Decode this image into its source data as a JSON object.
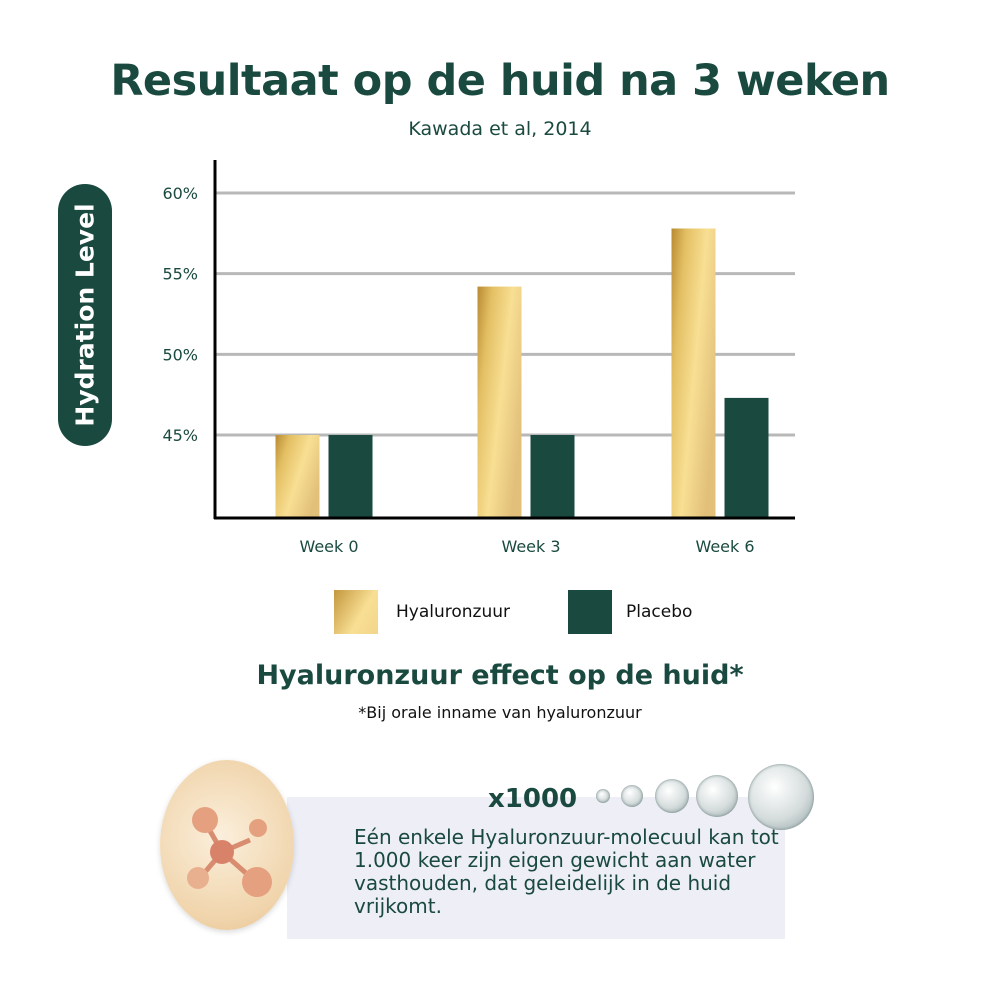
{
  "title": "Resultaat op de huid na 3 weken",
  "subtitle": "Kawada et al, 2014",
  "chart_data": {
    "type": "bar",
    "ylabel": "Hydration Level",
    "categories": [
      "Week 0",
      "Week 3",
      "Week 6"
    ],
    "yticks": [
      "45%",
      "50%",
      "55%",
      "60%"
    ],
    "ytick_values": [
      45,
      50,
      55,
      60
    ],
    "ylim": [
      40,
      62
    ],
    "grid": true,
    "legend_position": "bottom",
    "series": [
      {
        "name": "Hyaluronzuur",
        "values": [
          45,
          54.2,
          57.8
        ],
        "color": "#e3bf63"
      },
      {
        "name": "Placebo",
        "values": [
          45,
          45,
          47.3
        ],
        "color": "#1a4a3f"
      }
    ]
  },
  "section": {
    "heading": "Hyaluronzuur effect op de huid*",
    "note": "*Bij orale inname van hyaluronzuur",
    "multiplier": "x1000",
    "body": "Eén enkele Hyaluronzuur-molecuul kan tot 1.000 keer zijn eigen gewicht aan water vasthouden, dat geleidelijk in de huid vrijkomt."
  },
  "colors": {
    "primary": "#1a4a3f",
    "gold": "#e3bf63",
    "panel": "#eeeef6"
  }
}
